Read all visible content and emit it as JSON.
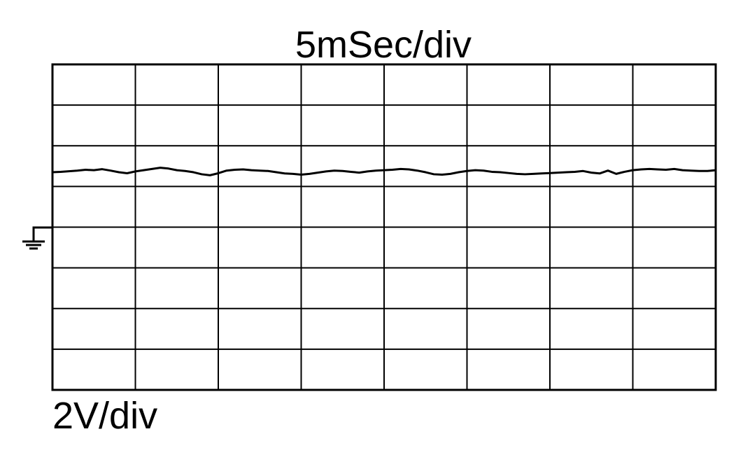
{
  "chart_data": {
    "type": "line",
    "title": "5mSec/div",
    "y_label": "2V/div",
    "x": [
      0,
      0.5,
      1,
      1.5,
      2,
      2.5,
      3,
      3.5,
      4,
      4.5,
      5,
      5.5,
      6,
      6.5,
      7,
      7.5,
      8,
      8.5,
      9,
      9.5,
      10,
      10.5,
      11,
      11.5,
      12,
      12.5,
      13,
      13.5,
      14,
      14.5,
      15,
      15.5,
      16,
      16.5,
      17,
      17.5,
      18,
      18.5,
      19,
      19.5,
      20,
      20.5,
      21,
      21.5,
      22,
      22.5,
      23,
      23.5,
      24,
      24.5,
      25,
      25.5,
      26,
      26.5,
      27,
      27.5,
      28,
      28.5,
      29,
      29.5,
      30,
      30.5,
      31,
      31.5,
      32,
      32.5,
      33,
      33.5,
      34,
      34.5,
      35,
      35.5,
      36,
      36.5,
      37,
      37.5,
      38,
      38.5,
      39,
      39.5,
      40
    ],
    "series": [
      {
        "color": "#000000",
        "values": [
          2.7,
          2.72,
          2.75,
          2.78,
          2.82,
          2.8,
          2.85,
          2.78,
          2.7,
          2.65,
          2.74,
          2.8,
          2.86,
          2.92,
          2.88,
          2.8,
          2.76,
          2.7,
          2.6,
          2.55,
          2.65,
          2.78,
          2.82,
          2.84,
          2.8,
          2.78,
          2.76,
          2.7,
          2.64,
          2.62,
          2.58,
          2.62,
          2.68,
          2.74,
          2.78,
          2.76,
          2.72,
          2.68,
          2.74,
          2.78,
          2.8,
          2.82,
          2.86,
          2.84,
          2.78,
          2.7,
          2.6,
          2.58,
          2.62,
          2.7,
          2.76,
          2.8,
          2.78,
          2.72,
          2.7,
          2.66,
          2.62,
          2.6,
          2.62,
          2.64,
          2.66,
          2.68,
          2.7,
          2.72,
          2.76,
          2.68,
          2.64,
          2.78,
          2.62,
          2.72,
          2.8,
          2.84,
          2.86,
          2.84,
          2.82,
          2.86,
          2.8,
          2.78,
          2.76,
          2.76,
          2.8
        ]
      }
    ],
    "xlim": [
      0,
      40
    ],
    "xticks": [
      0,
      5,
      10,
      15,
      20,
      25,
      30,
      35,
      40
    ],
    "ylim": [
      -8,
      8
    ],
    "yticks": [
      -8,
      -6,
      -4,
      -2,
      0,
      2,
      4,
      6,
      8
    ],
    "grid": true
  }
}
